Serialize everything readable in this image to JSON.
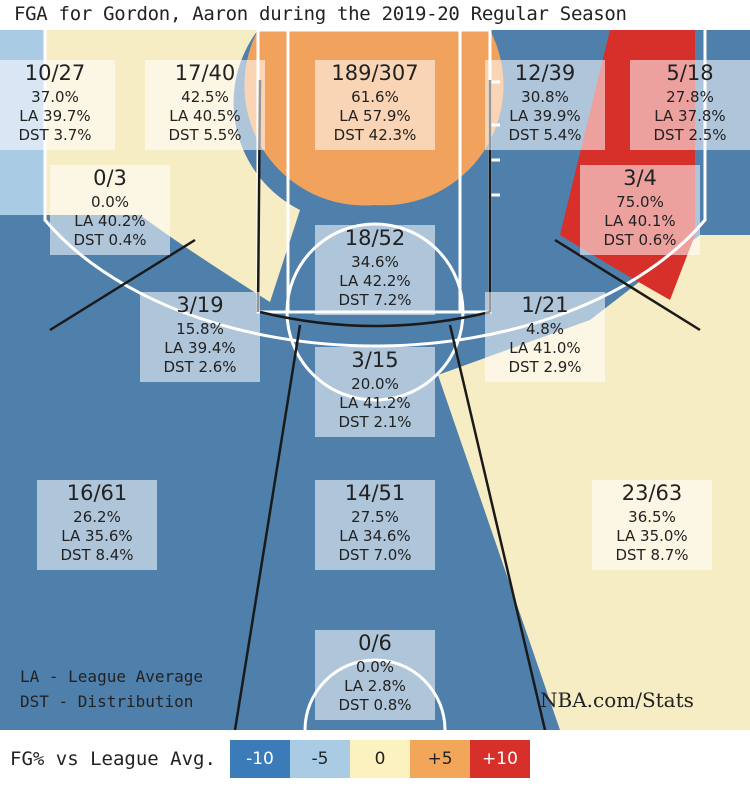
{
  "title": "FGA for Gordon, Aaron during the 2019-20 Regular Season",
  "notes": {
    "la": "LA - League Average",
    "dst": "DST - Distribution",
    "brand": "NBA.com/Stats"
  },
  "legend": {
    "label": "FG% vs League Avg.",
    "items": [
      {
        "text": "-10",
        "color": "#3b7bb8",
        "text_color": "#ffffff"
      },
      {
        "text": "-5",
        "color": "#a9cbe4",
        "text_color": "#222222"
      },
      {
        "text": "0",
        "color": "#fbf2c0",
        "text_color": "#222222"
      },
      {
        "text": "+5",
        "color": "#f2a65a",
        "text_color": "#222222"
      },
      {
        "text": "+10",
        "color": "#d7302a",
        "text_color": "#ffffff"
      }
    ]
  },
  "colors": {
    "blue": "#4f7fab",
    "light_blue": "#a9cbe4",
    "cream": "#f7edc4",
    "orange": "#f1a35e",
    "red": "#d7302a",
    "lines": "#ffffff",
    "wood": "#e8d6a4"
  },
  "chart_data": {
    "type": "shot-chart",
    "zones": [
      {
        "id": "left-corner-3",
        "made": 10,
        "att": 27,
        "fg": "37.0%",
        "la": "LA 39.7%",
        "dst": "DST 3.7%",
        "color": "light_blue"
      },
      {
        "id": "left-baseline-mid",
        "made": 17,
        "att": 40,
        "fg": "42.5%",
        "la": "LA 40.5%",
        "dst": "DST 5.5%",
        "color": "cream"
      },
      {
        "id": "restricted-area",
        "made": 189,
        "att": 307,
        "fg": "61.6%",
        "la": "LA 57.9%",
        "dst": "DST 42.3%",
        "color": "orange"
      },
      {
        "id": "right-baseline-mid",
        "made": 12,
        "att": 39,
        "fg": "30.8%",
        "la": "LA 39.9%",
        "dst": "DST 5.4%",
        "color": "blue"
      },
      {
        "id": "right-corner-3",
        "made": 5,
        "att": 18,
        "fg": "27.8%",
        "la": "LA 37.8%",
        "dst": "DST 2.5%",
        "color": "blue"
      },
      {
        "id": "left-short-mid",
        "made": 0,
        "att": 3,
        "fg": "0.0%",
        "la": "LA 40.2%",
        "dst": "DST 0.4%",
        "color": "blue"
      },
      {
        "id": "right-short-mid",
        "made": 3,
        "att": 4,
        "fg": "75.0%",
        "la": "LA 40.1%",
        "dst": "DST 0.6%",
        "color": "red"
      },
      {
        "id": "paint-non-ra",
        "made": 18,
        "att": 52,
        "fg": "34.6%",
        "la": "LA 42.2%",
        "dst": "DST 7.2%",
        "color": "blue"
      },
      {
        "id": "left-elbow-mid",
        "made": 3,
        "att": 19,
        "fg": "15.8%",
        "la": "LA 39.4%",
        "dst": "DST 2.6%",
        "color": "blue"
      },
      {
        "id": "right-elbow-mid",
        "made": 1,
        "att": 21,
        "fg": "4.8%",
        "la": "LA 41.0%",
        "dst": "DST 2.9%",
        "color": "blue"
      },
      {
        "id": "top-key-mid",
        "made": 3,
        "att": 15,
        "fg": "20.0%",
        "la": "LA 41.2%",
        "dst": "DST 2.1%",
        "color": "blue"
      },
      {
        "id": "left-wing-3",
        "made": 16,
        "att": 61,
        "fg": "26.2%",
        "la": "LA 35.6%",
        "dst": "DST 8.4%",
        "color": "blue"
      },
      {
        "id": "top-key-3",
        "made": 14,
        "att": 51,
        "fg": "27.5%",
        "la": "LA 34.6%",
        "dst": "DST 7.0%",
        "color": "blue"
      },
      {
        "id": "right-wing-3",
        "made": 23,
        "att": 63,
        "fg": "36.5%",
        "la": "LA 35.0%",
        "dst": "DST 8.7%",
        "color": "cream"
      },
      {
        "id": "backcourt",
        "made": 0,
        "att": 6,
        "fg": "0.0%",
        "la": "LA 2.8%",
        "dst": "DST 0.8%",
        "color": "blue"
      }
    ]
  }
}
